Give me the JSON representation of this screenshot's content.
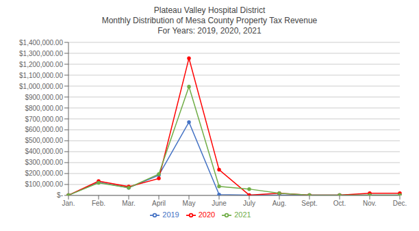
{
  "chart_data": {
    "type": "line",
    "title": "Plateau Valley Hospital District\nMonthly Distribution of Mesa County Property Tax Revenue\nFor Years: 2019, 2020, 2021",
    "categories": [
      "Jan.",
      "Feb.",
      "Mar.",
      "April",
      "May",
      "June",
      "July",
      "Aug.",
      "Sept.",
      "Oct.",
      "Nov.",
      "Dec."
    ],
    "series": [
      {
        "name": "2019",
        "color": "#4472C4",
        "values": [
          2000,
          120000,
          70000,
          185000,
          670000,
          8000,
          3000,
          3000,
          3000,
          3000,
          3000,
          3000
        ]
      },
      {
        "name": "2020",
        "color": "#FF0000",
        "values": [
          2000,
          130000,
          80000,
          155000,
          1255000,
          235000,
          3000,
          20000,
          3000,
          3000,
          20000,
          20000
        ]
      },
      {
        "name": "2021",
        "color": "#70AD47",
        "values": [
          2000,
          115000,
          70000,
          195000,
          995000,
          82000,
          58000,
          20000,
          3000,
          3000,
          3000,
          3000
        ]
      }
    ],
    "ylim": [
      0,
      1400000
    ],
    "yticks": [
      {
        "value": 0,
        "label": "$-"
      },
      {
        "value": 100000,
        "label": "$100,000.00"
      },
      {
        "value": 200000,
        "label": "$200,000.00"
      },
      {
        "value": 300000,
        "label": "$300,000.00"
      },
      {
        "value": 400000,
        "label": "$400,000.00"
      },
      {
        "value": 500000,
        "label": "$500,000.00"
      },
      {
        "value": 600000,
        "label": "$600,000.00"
      },
      {
        "value": 700000,
        "label": "$700,000.00"
      },
      {
        "value": 800000,
        "label": "$800,000.00"
      },
      {
        "value": 900000,
        "label": "$900,000.00"
      },
      {
        "value": 1000000,
        "label": "$1,000,000.00"
      },
      {
        "value": 1100000,
        "label": "$1,100,000.00"
      },
      {
        "value": 1200000,
        "label": "$1,200,000.00"
      },
      {
        "value": 1300000,
        "label": "$1,300,000.00"
      },
      {
        "value": 1400000,
        "label": "$1,400,000.00"
      }
    ],
    "grid": true,
    "legend": "bottom",
    "marker": "circle"
  }
}
